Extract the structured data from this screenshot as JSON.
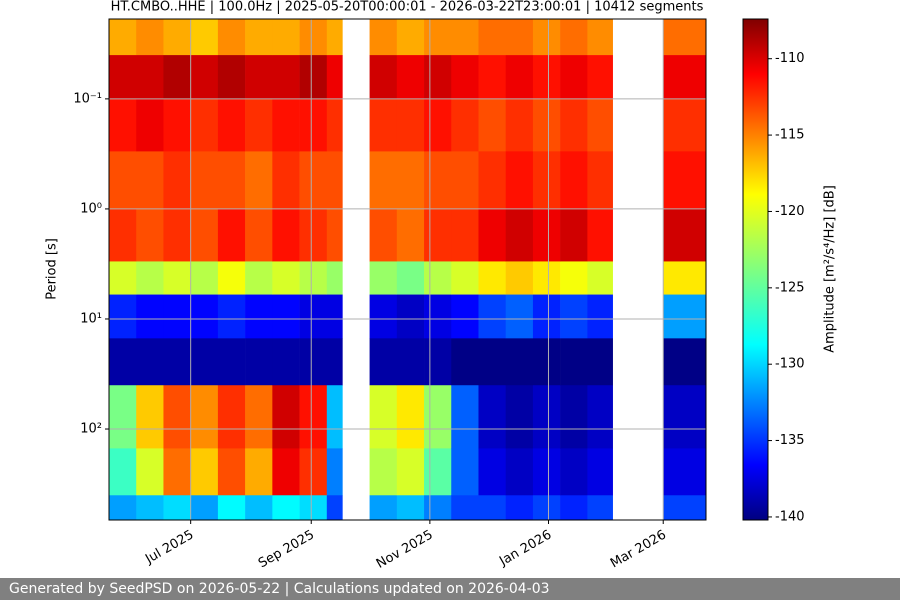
{
  "chart_data": {
    "type": "heatmap",
    "title": "HT.CMBO..HHE | 100.0Hz | 2025-05-20T00:00:01 - 2026-03-22T23:00:01 | 10412 segments",
    "y_label": "Period [s]",
    "colorbar_label": "Amplitude [m²/s⁴/Hz] [dB]",
    "log_y": true,
    "grid": true,
    "xlim": [
      "2025-05-20",
      "2026-03-23"
    ],
    "xticks": [
      {
        "value": "2025-07-01",
        "label": "Jul 2025"
      },
      {
        "value": "2025-09-01",
        "label": "Sep 2025"
      },
      {
        "value": "2025-11-01",
        "label": "Nov 2025"
      },
      {
        "value": "2026-01-01",
        "label": "Jan 2026"
      },
      {
        "value": "2026-03-01",
        "label": "Mar 2026"
      }
    ],
    "ylim": [
      0.0188,
      671
    ],
    "yticks": [
      {
        "value": 0.1,
        "label": "10⁻¹"
      },
      {
        "value": 1,
        "label": "10⁰"
      },
      {
        "value": 10,
        "label": "10¹"
      },
      {
        "value": 100,
        "label": "10²"
      }
    ],
    "zlim": [
      -140.2,
      -107.4
    ],
    "cticks": [
      -110,
      -115,
      -120,
      -125,
      -130,
      -135,
      -140
    ],
    "x_edges": [
      "2025-05-20",
      "2025-06-03",
      "2025-06-17",
      "2025-07-01",
      "2025-07-15",
      "2025-07-29",
      "2025-08-12",
      "2025-08-26",
      "2025-09-09",
      "2025-09-17",
      "2025-10-01",
      "2025-10-15",
      "2025-10-29",
      "2025-11-12",
      "2025-11-26",
      "2025-12-10",
      "2025-12-24",
      "2026-01-07",
      "2026-01-21",
      "2026-02-03",
      "2026-03-01",
      "2026-03-23"
    ],
    "y_edges": [
      0.0188,
      0.04,
      0.1,
      0.3,
      1,
      3,
      6,
      15,
      40,
      150,
      400,
      671
    ],
    "z": [
      [
        -117,
        -110,
        -112,
        -114,
        -113,
        -121,
        -135,
        -139,
        -124,
        -126,
        -131
      ],
      [
        -116,
        -110,
        -111,
        -114,
        -114,
        -122,
        -136,
        -139,
        -118,
        -121,
        -130
      ],
      [
        -117,
        -109,
        -112,
        -113,
        -113,
        -121,
        -136,
        -139,
        -114,
        -115,
        -129
      ],
      [
        -118,
        -110,
        -113,
        -114,
        -114,
        -122,
        -136,
        -139,
        -116,
        -118,
        -131
      ],
      [
        -116,
        -109,
        -112,
        -114,
        -112,
        -120,
        -135,
        -139,
        -113,
        -114,
        -128
      ],
      [
        -117,
        -110,
        -113,
        -115,
        -114,
        -122,
        -136,
        -139,
        -115,
        -117,
        -130
      ],
      [
        -117,
        -110,
        -112,
        -113,
        -112,
        -121,
        -136,
        -139,
        -110,
        -111,
        -128
      ],
      [
        -116,
        -109,
        -112,
        -114,
        -113,
        -122,
        -137,
        -139,
        -112,
        -113,
        -129
      ],
      [
        -117,
        -111,
        -113,
        -114,
        -114,
        -123,
        -137,
        -139,
        -130,
        -132,
        -134
      ],
      [
        null,
        null,
        null,
        null,
        null,
        null,
        null,
        null,
        null,
        null,
        null
      ],
      [
        -116,
        -110,
        -113,
        -115,
        -114,
        -123,
        -137,
        -139,
        -121,
        -122,
        -131
      ],
      [
        -117,
        -111,
        -113,
        -115,
        -115,
        -124,
        -138,
        -139,
        -119,
        -121,
        -130
      ],
      [
        -116,
        -110,
        -112,
        -114,
        -113,
        -122,
        -137,
        -139,
        -123,
        -125,
        -132
      ],
      [
        -116,
        -111,
        -113,
        -114,
        -113,
        -121,
        -136,
        -140,
        -133,
        -133,
        -134
      ],
      [
        -115,
        -112,
        -114,
        -113,
        -111,
        -119,
        -134,
        -140,
        -138,
        -137,
        -134
      ],
      [
        -115,
        -111,
        -113,
        -112,
        -110,
        -118,
        -133,
        -140,
        -139,
        -138,
        -135
      ],
      [
        -116,
        -112,
        -114,
        -113,
        -111,
        -119,
        -135,
        -140,
        -138,
        -137,
        -134
      ],
      [
        -115,
        -111,
        -113,
        -112,
        -110,
        -120,
        -134,
        -140,
        -139,
        -138,
        -135
      ],
      [
        -116,
        -112,
        -114,
        -113,
        -112,
        -121,
        -135,
        -140,
        -138,
        -137,
        -134
      ],
      [
        null,
        null,
        null,
        null,
        null,
        null,
        null,
        null,
        null,
        null,
        null
      ],
      [
        -115,
        -111,
        -113,
        -112,
        -110,
        -119,
        -131,
        -140,
        -138,
        -137,
        -134
      ]
    ]
  },
  "footer": "Generated by SeedPSD on 2026-05-22 | Calculations updated on 2026-04-03"
}
